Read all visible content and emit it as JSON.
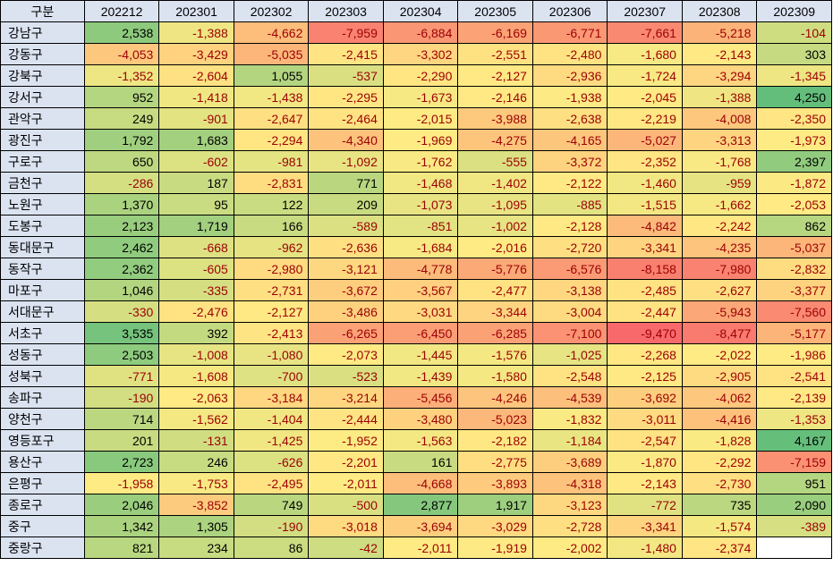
{
  "header": {
    "corner_label": "구분"
  },
  "chart_data": {
    "type": "heatmap",
    "color_scale": {
      "min": "#f8696b",
      "mid": "#ffeb84",
      "max": "#63be7b"
    },
    "columns": [
      "202212",
      "202301",
      "202302",
      "202303",
      "202304",
      "202305",
      "202306",
      "202307",
      "202308",
      "202309"
    ],
    "rows": [
      {
        "label": "강남구",
        "values": [
          2538,
          -1388,
          -4662,
          -7959,
          -6884,
          -6169,
          -6771,
          -7661,
          -5218,
          -104
        ]
      },
      {
        "label": "강동구",
        "values": [
          -4053,
          -3429,
          -5035,
          -2415,
          -3302,
          -2551,
          -2480,
          -1680,
          -2143,
          303
        ]
      },
      {
        "label": "강북구",
        "values": [
          -1352,
          -2604,
          1055,
          -537,
          -2290,
          -2127,
          -2936,
          -1724,
          -3294,
          -1345
        ]
      },
      {
        "label": "강서구",
        "values": [
          952,
          -1418,
          -1438,
          -2295,
          -1673,
          -2146,
          -1938,
          -2045,
          -1388,
          4250
        ]
      },
      {
        "label": "관악구",
        "values": [
          249,
          -901,
          -2647,
          -2464,
          -2015,
          -3988,
          -2638,
          -2219,
          -4008,
          -2350
        ]
      },
      {
        "label": "광진구",
        "values": [
          1792,
          1683,
          -2294,
          -4340,
          -1969,
          -4275,
          -4165,
          -5027,
          -3313,
          -1973
        ]
      },
      {
        "label": "구로구",
        "values": [
          650,
          -602,
          -981,
          -1092,
          -1762,
          -555,
          -3372,
          -2352,
          -1768,
          2397
        ]
      },
      {
        "label": "금천구",
        "values": [
          -286,
          187,
          -2831,
          771,
          -1468,
          -1402,
          -2122,
          -1460,
          -959,
          -1872
        ]
      },
      {
        "label": "노원구",
        "values": [
          1370,
          95,
          122,
          209,
          -1073,
          -1095,
          -885,
          -1515,
          -1662,
          -2053
        ]
      },
      {
        "label": "도봉구",
        "values": [
          2123,
          1719,
          166,
          -589,
          -851,
          -1002,
          -2128,
          -4842,
          -2242,
          862
        ]
      },
      {
        "label": "동대문구",
        "values": [
          2462,
          -668,
          -962,
          -2636,
          -1684,
          -2016,
          -2720,
          -3341,
          -4235,
          -5037
        ]
      },
      {
        "label": "동작구",
        "values": [
          2362,
          -605,
          -2980,
          -3121,
          -4778,
          -5776,
          -6576,
          -8158,
          -7980,
          -2832
        ]
      },
      {
        "label": "마포구",
        "values": [
          1046,
          -335,
          -2731,
          -3672,
          -3567,
          -2477,
          -3138,
          -2485,
          -2627,
          -3377
        ]
      },
      {
        "label": "서대문구",
        "values": [
          -330,
          -2476,
          -2127,
          -3486,
          -3031,
          -3344,
          -3004,
          -2447,
          -5943,
          -7560
        ]
      },
      {
        "label": "서초구",
        "values": [
          3535,
          392,
          -2413,
          -6265,
          -6450,
          -6285,
          -7100,
          -9470,
          -8477,
          -5177
        ]
      },
      {
        "label": "성동구",
        "values": [
          2503,
          -1008,
          -1080,
          -2073,
          -1445,
          -1576,
          -1025,
          -2268,
          -2022,
          -1986
        ]
      },
      {
        "label": "성북구",
        "values": [
          -771,
          -1608,
          -700,
          -523,
          -1439,
          -1580,
          -2548,
          -2125,
          -2905,
          -2541
        ]
      },
      {
        "label": "송파구",
        "values": [
          -190,
          -2063,
          -3184,
          -3214,
          -5456,
          -4246,
          -4539,
          -3692,
          -4062,
          -2139
        ]
      },
      {
        "label": "양천구",
        "values": [
          714,
          -1562,
          -1404,
          -2444,
          -3480,
          -5023,
          -1832,
          -3011,
          -4416,
          -1353
        ]
      },
      {
        "label": "영등포구",
        "values": [
          201,
          -131,
          -1425,
          -1952,
          -1563,
          -2182,
          -1184,
          -2547,
          -1828,
          4167
        ]
      },
      {
        "label": "용산구",
        "values": [
          2723,
          246,
          -626,
          -2201,
          161,
          -2775,
          -3689,
          -1870,
          -2292,
          -7159
        ]
      },
      {
        "label": "은평구",
        "values": [
          -1958,
          -1753,
          -2495,
          -2011,
          -4668,
          -3893,
          -4318,
          -2143,
          -2730,
          951
        ]
      },
      {
        "label": "종로구",
        "values": [
          2046,
          -3852,
          749,
          -500,
          2877,
          1917,
          -3123,
          -772,
          735,
          2090
        ]
      },
      {
        "label": "중구",
        "values": [
          1342,
          1305,
          -190,
          -3018,
          -3694,
          -3029,
          -2728,
          -3341,
          -1574,
          -389
        ]
      },
      {
        "label": "중랑구",
        "values": [
          821,
          234,
          86,
          -42,
          -2011,
          -1919,
          -2002,
          -1480,
          -2374,
          null
        ]
      }
    ]
  }
}
